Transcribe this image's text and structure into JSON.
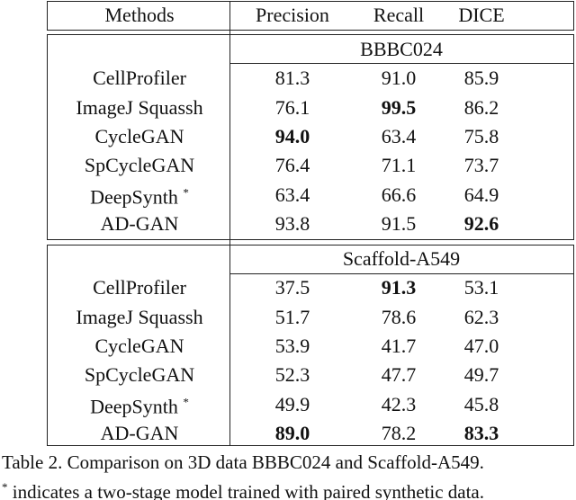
{
  "table": {
    "header": [
      "Methods",
      "Precision",
      "Recall",
      "DICE"
    ],
    "sections": [
      {
        "title": "BBBC024",
        "rows": [
          {
            "method": "CellProfiler",
            "values": [
              "81.3",
              "91.0",
              "85.9"
            ],
            "bold": []
          },
          {
            "method": "ImageJ Squassh",
            "values": [
              "76.1",
              "99.5",
              "86.2"
            ],
            "bold": [
              1
            ]
          },
          {
            "method": "CycleGAN",
            "values": [
              "94.0",
              "63.4",
              "75.8"
            ],
            "bold": [
              0
            ]
          },
          {
            "method": "SpCycleGAN",
            "values": [
              "76.4",
              "71.1",
              "73.7"
            ],
            "bold": []
          },
          {
            "method": "DeepSynth",
            "mark": "*",
            "values": [
              "63.4",
              "66.6",
              "64.9"
            ],
            "bold": []
          },
          {
            "method": "AD-GAN",
            "values": [
              "93.8",
              "91.5",
              "92.6"
            ],
            "bold": [
              2
            ]
          }
        ]
      },
      {
        "title": "Scaffold-A549",
        "rows": [
          {
            "method": "CellProfiler",
            "values": [
              "37.5",
              "91.3",
              "53.1"
            ],
            "bold": [
              1
            ]
          },
          {
            "method": "ImageJ Squassh",
            "values": [
              "51.7",
              "78.6",
              "62.3"
            ],
            "bold": []
          },
          {
            "method": "CycleGAN",
            "values": [
              "53.9",
              "41.7",
              "47.0"
            ],
            "bold": []
          },
          {
            "method": "SpCycleGAN",
            "values": [
              "52.3",
              "47.7",
              "49.7"
            ],
            "bold": []
          },
          {
            "method": "DeepSynth",
            "mark": "*",
            "values": [
              "49.9",
              "42.3",
              "45.8"
            ],
            "bold": []
          },
          {
            "method": "AD-GAN",
            "values": [
              "89.0",
              "78.2",
              "83.3"
            ],
            "bold": [
              0,
              2
            ]
          }
        ]
      }
    ]
  },
  "caption": {
    "text": "Table 2. Comparison on 3D data BBBC024 and Scaffold-A549."
  },
  "footnote": {
    "mark": "*",
    "text": "indicates a two-stage model trained with paired synthetic data."
  }
}
